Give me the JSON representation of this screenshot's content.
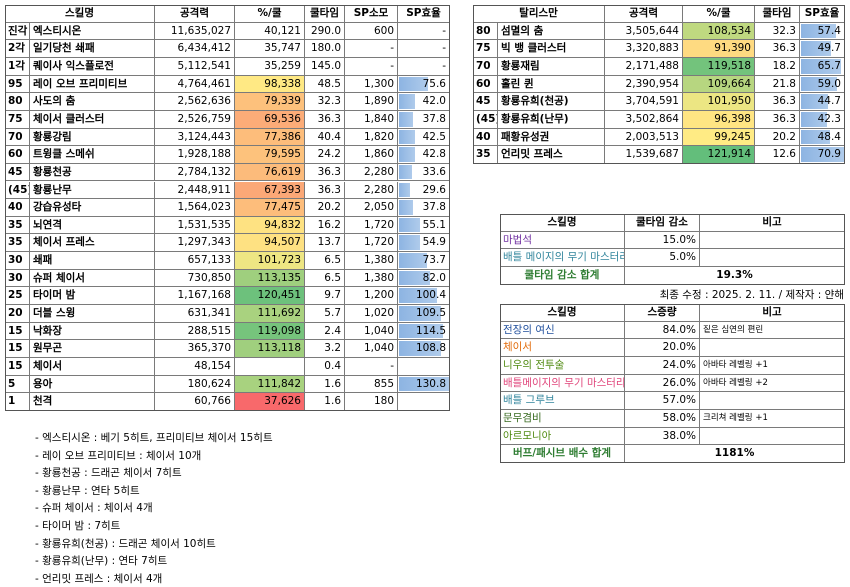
{
  "skill_table": {
    "headers": [
      "스킬명",
      "공격력",
      "%/쿨",
      "쿨타임",
      "SP소모",
      "SP효율"
    ],
    "rows": [
      [
        "진각",
        "엑스티시온",
        "11,635,027",
        "40,121",
        "290.0",
        "600",
        "-"
      ],
      [
        "2각",
        "일기당천 쇄패",
        "6,434,412",
        "35,747",
        "180.0",
        "-",
        "-"
      ],
      [
        "1각",
        "퀘이사 익스플로전",
        "5,112,541",
        "35,259",
        "145.0",
        "-",
        "-"
      ],
      [
        "95",
        "레이 오브 프리미티브",
        "4,764,461",
        "98,338",
        "48.5",
        "1,300",
        "75.6"
      ],
      [
        "80",
        "사도의 춤",
        "2,562,636",
        "79,339",
        "32.3",
        "1,890",
        "42.0"
      ],
      [
        "75",
        "체이서 클러스터",
        "2,526,759",
        "69,536",
        "36.3",
        "1,840",
        "37.8"
      ],
      [
        "70",
        "황룡강림",
        "3,124,443",
        "77,386",
        "40.4",
        "1,820",
        "42.5"
      ],
      [
        "60",
        "트윙클 스메쉬",
        "1,928,188",
        "79,595",
        "24.2",
        "1,860",
        "42.8"
      ],
      [
        "45",
        "황룡천공",
        "2,784,132",
        "76,619",
        "36.3",
        "2,280",
        "33.6"
      ],
      [
        "(45)",
        "황룡난무",
        "2,448,911",
        "67,393",
        "36.3",
        "2,280",
        "29.6"
      ],
      [
        "40",
        "강습유성타",
        "1,564,023",
        "77,475",
        "20.2",
        "2,050",
        "37.8"
      ],
      [
        "35",
        "뇌연격",
        "1,531,535",
        "94,832",
        "16.2",
        "1,720",
        "55.1"
      ],
      [
        "35",
        "체이서 프레스",
        "1,297,343",
        "94,507",
        "13.7",
        "1,720",
        "54.9"
      ],
      [
        "30",
        "쇄패",
        "657,133",
        "101,723",
        "6.5",
        "1,380",
        "73.7"
      ],
      [
        "30",
        "슈퍼 체이서",
        "730,850",
        "113,135",
        "6.5",
        "1,380",
        "82.0"
      ],
      [
        "25",
        "타이머 밤",
        "1,167,168",
        "120,451",
        "9.7",
        "1,200",
        "100.4"
      ],
      [
        "20",
        "더블 스윙",
        "631,341",
        "111,692",
        "5.7",
        "1,020",
        "109.5"
      ],
      [
        "15",
        "낙화장",
        "288,515",
        "119,098",
        "2.4",
        "1,040",
        "114.5"
      ],
      [
        "15",
        "원무곤",
        "365,370",
        "113,118",
        "3.2",
        "1,040",
        "108.8"
      ],
      [
        "15",
        "체이서",
        "48,154",
        null,
        "0.4",
        "-",
        null
      ],
      [
        "5",
        "용아",
        "180,624",
        "111,842",
        "1.6",
        "855",
        "130.8"
      ],
      [
        "1",
        "천격",
        "60,766",
        "37,626",
        "1.6",
        "180",
        null
      ]
    ],
    "pct_scale_from_row": 3
  },
  "talisman_table": {
    "headers": [
      "탈리스만",
      "공격력",
      "%/쿨",
      "쿨타임",
      "SP효율"
    ],
    "rows": [
      [
        "80",
        "섬멸의 춤",
        "3,505,644",
        "108,534",
        "32.3",
        "57.4"
      ],
      [
        "75",
        "빅 뱅 클러스터",
        "3,320,883",
        "91,390",
        "36.3",
        "49.7"
      ],
      [
        "70",
        "황룡재림",
        "2,171,488",
        "119,518",
        "18.2",
        "65.7"
      ],
      [
        "60",
        "홀린 퀸",
        "2,390,954",
        "109,664",
        "21.8",
        "59.0"
      ],
      [
        "45",
        "황룡유희(천공)",
        "3,704,591",
        "101,950",
        "36.3",
        "44.7"
      ],
      [
        "(45)",
        "황룡유희(난무)",
        "3,502,864",
        "96,398",
        "36.3",
        "42.3"
      ],
      [
        "40",
        "패황유성권",
        "2,003,513",
        "99,245",
        "20.2",
        "48.4"
      ],
      [
        "35",
        "언리밋 프레스",
        "1,539,687",
        "121,914",
        "12.6",
        "70.9"
      ]
    ]
  },
  "pct_scale_colors": [
    "#f8696b",
    "#ffeb84",
    "#63be7b"
  ],
  "bar_color": "#8db4e2",
  "cooldown_table": {
    "headers": [
      "스킬명",
      "쿨타임 감소",
      "비고"
    ],
    "rows": [
      {
        "name": "마법석",
        "color": "#7030a0",
        "value": "15.0%",
        "note": null
      },
      {
        "name": "배틀 메이지의 무기 마스터리",
        "color": "#31859c",
        "value": "5.0%",
        "note": null
      }
    ],
    "total": {
      "label": "쿨타임 감소 합계",
      "value": "19.3%"
    }
  },
  "updated_note": "최종 수정 : 2025. 2. 11. / 제작자 : 얀해",
  "buff_table": {
    "headers": [
      "스킬명",
      "스증량",
      "비고"
    ],
    "rows": [
      {
        "name": "전장의 여신",
        "color": "#1f4e9c",
        "value": "84.0%",
        "note": "짙은 심연의 편린"
      },
      {
        "name": "체이서",
        "color": "#e26b0a",
        "value": "20.0%",
        "note": null
      },
      {
        "name": "니우의 전투술",
        "color": "#4f8a10",
        "value": "24.0%",
        "note": "아바타 레벨링 +1"
      },
      {
        "name": "배틀메이지의 무기 마스터리",
        "color": "#e0457b",
        "value": "26.0%",
        "note": "아바타 레벨링 +2"
      },
      {
        "name": "배틀 그루브",
        "color": "#31859c",
        "value": "57.0%",
        "note": null
      },
      {
        "name": "문무겸비",
        "color": "#376a1f",
        "value": "58.0%",
        "note": "크리쳐 레벨링 +1"
      },
      {
        "name": "아르모니아",
        "color": "#4f8a10",
        "value": "38.0%",
        "note": null
      }
    ],
    "total": {
      "label": "버프/패시브 배수 합계",
      "value": "1181%"
    }
  },
  "notes": [
    "- 엑스티시온 : 베기 5히트, 프리미티브 체이서 15히트",
    "- 레이 오브 프리미티브 : 체이서 10개",
    "- 황룡천공 : 드래곤 체이서 7히트",
    "- 황룡난무 : 연타 5히트",
    "- 슈퍼 체이서 : 체이서 4개",
    "- 타이머 밤 : 7히트",
    "- 황룡유희(천공) : 드래곤 체이서 10히트",
    "- 황룡유희(난무) : 연타 7히트",
    "- 언리밋 프레스 : 체이서 4개"
  ]
}
